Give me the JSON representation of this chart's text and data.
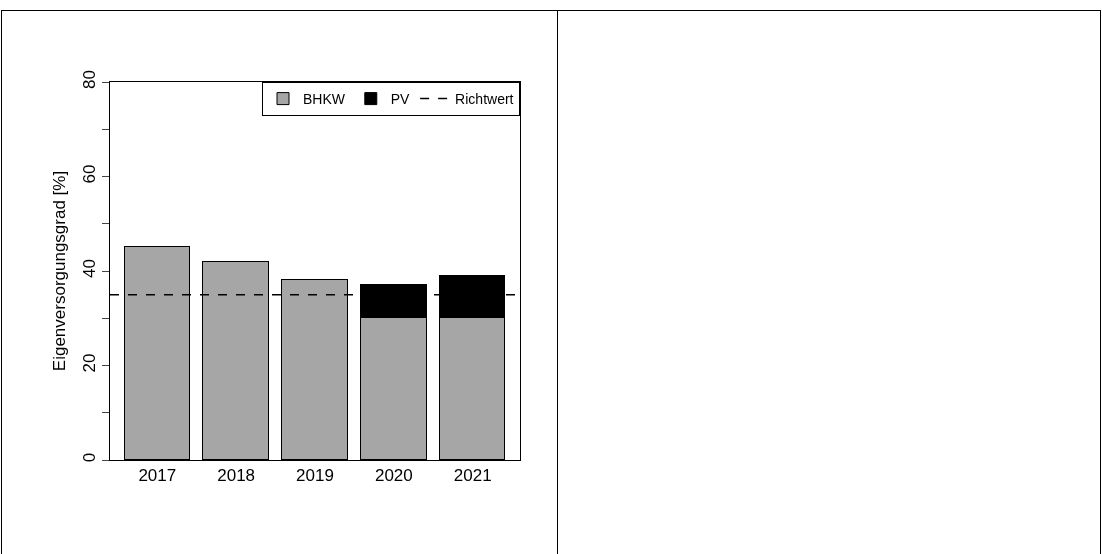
{
  "chart_data": {
    "type": "bar",
    "ylabel": "Eigenversorgungsgrad [%]",
    "categories": [
      "2017",
      "2018",
      "2019",
      "2020",
      "2021"
    ],
    "stacked": true,
    "series": [
      {
        "name": "BHKW",
        "color": "#a6a6a6",
        "values": [
          45,
          42,
          38,
          30,
          30
        ]
      },
      {
        "name": "PV",
        "color": "#000000",
        "values": [
          0,
          0,
          0,
          7,
          9
        ]
      }
    ],
    "ref_lines": [
      {
        "axis": "y",
        "value": 35,
        "label": "Richtwert",
        "color": "#000000",
        "line_style": "dashed"
      }
    ],
    "ylim": [
      0,
      80
    ],
    "yticks": [
      0,
      {
        "value": 10,
        "label": null
      },
      20,
      {
        "value": 30,
        "label": null
      },
      40,
      {
        "value": 50,
        "label": null
      },
      60,
      {
        "value": 70,
        "label": null
      },
      80
    ],
    "grid": false,
    "legend": "top right"
  }
}
